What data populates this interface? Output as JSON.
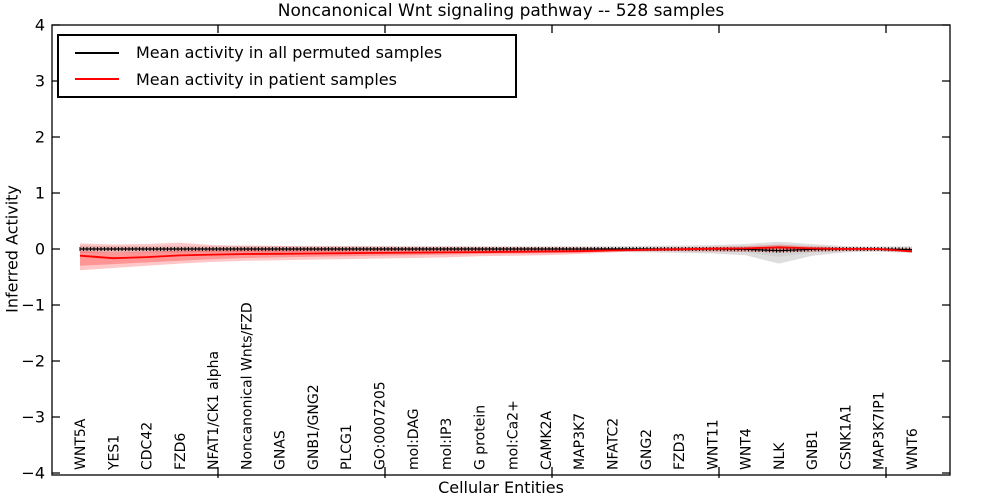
{
  "title": "Noncanonical Wnt signaling pathway -- 528 samples",
  "legend": {
    "entries": [
      {
        "label": "Mean activity in all permuted samples",
        "color": "#000000"
      },
      {
        "label": "Mean activity in patient samples",
        "color": "#ff0000"
      }
    ]
  },
  "chart_data": {
    "type": "line",
    "title": "Noncanonical Wnt signaling pathway -- 528 samples",
    "xlabel": "Cellular Entities",
    "ylabel": "Inferred Activity",
    "ylim": [
      -4,
      4
    ],
    "yticks": [
      "4",
      "3",
      "2",
      "1",
      "0",
      "−1",
      "−2",
      "−3",
      "−4"
    ],
    "ytick_values": [
      4,
      3,
      2,
      1,
      0,
      -1,
      -2,
      -3,
      -4
    ],
    "grid": false,
    "legend_position": "upper left",
    "categories": [
      "WNT5A",
      "YES1",
      "CDC42",
      "FZD6",
      "NFAT1/CK1 alpha",
      "Noncanonical Wnts/FZD",
      "GNAS",
      "GNB1/GNG2",
      "PLCG1",
      "GO:0007205",
      "mol:DAG",
      "mol:IP3",
      "G protein",
      "mol:Ca2+",
      "CAMK2A",
      "MAP3K7",
      "NFATC2",
      "GNG2",
      "FZD3",
      "WNT11",
      "WNT4",
      "NLK",
      "GNB1",
      "CSNK1A1",
      "MAP3K7IP1",
      "WNT6"
    ],
    "series": [
      {
        "name": "Mean activity in all permuted samples",
        "color": "#000000",
        "marker": "dense-tick-markers",
        "band_color": "#bbbbbb",
        "values": [
          0,
          0,
          0,
          0,
          0,
          0,
          0,
          0,
          0,
          0,
          0,
          0,
          0,
          0,
          0,
          0,
          0,
          0,
          0,
          0,
          -0.005,
          -0.03,
          -0.005,
          0,
          0,
          -0.01
        ],
        "band_upper": [
          0.06,
          0.05,
          0.05,
          0.05,
          0.05,
          0.05,
          0.05,
          0.05,
          0.05,
          0.05,
          0.05,
          0.05,
          0.05,
          0.05,
          0.05,
          0.05,
          0.05,
          0.055,
          0.06,
          0.07,
          0.09,
          0.13,
          0.09,
          0.05,
          0.045,
          0.05
        ],
        "band_lower": [
          -0.07,
          -0.06,
          -0.06,
          -0.06,
          -0.055,
          -0.055,
          -0.055,
          -0.05,
          -0.05,
          -0.05,
          -0.05,
          -0.05,
          -0.05,
          -0.05,
          -0.05,
          -0.05,
          -0.05,
          -0.06,
          -0.07,
          -0.08,
          -0.11,
          -0.26,
          -0.12,
          -0.06,
          -0.05,
          -0.07
        ],
        "band_inner_upper": [
          0.03,
          0.02,
          0.02,
          0.02,
          0.02,
          0.02,
          0.02,
          0.02,
          0.02,
          0.02,
          0.02,
          0.02,
          0.02,
          0.02,
          0.02,
          0.02,
          0.02,
          0.025,
          0.03,
          0.035,
          0.05,
          0.07,
          0.045,
          0.025,
          0.02,
          0.025
        ],
        "band_inner_lower": [
          -0.035,
          -0.03,
          -0.03,
          -0.03,
          -0.025,
          -0.025,
          -0.025,
          -0.025,
          -0.025,
          -0.025,
          -0.025,
          -0.025,
          -0.025,
          -0.025,
          -0.025,
          -0.025,
          -0.025,
          -0.03,
          -0.035,
          -0.04,
          -0.06,
          -0.14,
          -0.06,
          -0.03,
          -0.025,
          -0.035
        ]
      },
      {
        "name": "Mean activity in patient samples",
        "color": "#ff0000",
        "marker": "none",
        "band_color": "#ff0000",
        "values": [
          -0.12,
          -0.165,
          -0.145,
          -0.115,
          -0.1,
          -0.09,
          -0.085,
          -0.08,
          -0.075,
          -0.07,
          -0.065,
          -0.06,
          -0.055,
          -0.05,
          -0.045,
          -0.04,
          -0.025,
          -0.015,
          -0.005,
          0.005,
          0.01,
          0.03,
          0.01,
          0,
          0,
          -0.045
        ],
        "band_upper": [
          0.1,
          0.08,
          0.09,
          0.11,
          0.07,
          0.06,
          0.055,
          0.05,
          0.05,
          0.045,
          0.04,
          0.04,
          0.035,
          0.035,
          0.03,
          0.03,
          0.02,
          0.02,
          0.03,
          0.04,
          0.05,
          0.08,
          0.05,
          0.03,
          0.02,
          0.02
        ],
        "band_lower": [
          -0.38,
          -0.34,
          -0.3,
          -0.26,
          -0.23,
          -0.21,
          -0.2,
          -0.19,
          -0.18,
          -0.17,
          -0.16,
          -0.15,
          -0.13,
          -0.12,
          -0.11,
          -0.09,
          -0.06,
          -0.04,
          -0.04,
          -0.05,
          -0.05,
          -0.06,
          -0.05,
          -0.04,
          -0.03,
          -0.06
        ],
        "band_inner_upper": [
          -0.04,
          -0.06,
          -0.05,
          -0.03,
          -0.02,
          -0.015,
          -0.01,
          -0.01,
          -0.01,
          -0.005,
          0,
          0,
          0,
          0,
          0,
          0,
          0.005,
          0.005,
          0.01,
          0.015,
          0.02,
          0.05,
          0.02,
          0.01,
          0.005,
          -0.01
        ],
        "band_inner_lower": [
          -0.3,
          -0.27,
          -0.24,
          -0.21,
          -0.18,
          -0.16,
          -0.15,
          -0.14,
          -0.13,
          -0.12,
          -0.11,
          -0.1,
          -0.09,
          -0.08,
          -0.075,
          -0.065,
          -0.045,
          -0.03,
          -0.02,
          -0.02,
          -0.02,
          -0.03,
          -0.02,
          -0.015,
          -0.01,
          -0.03
        ]
      }
    ]
  }
}
